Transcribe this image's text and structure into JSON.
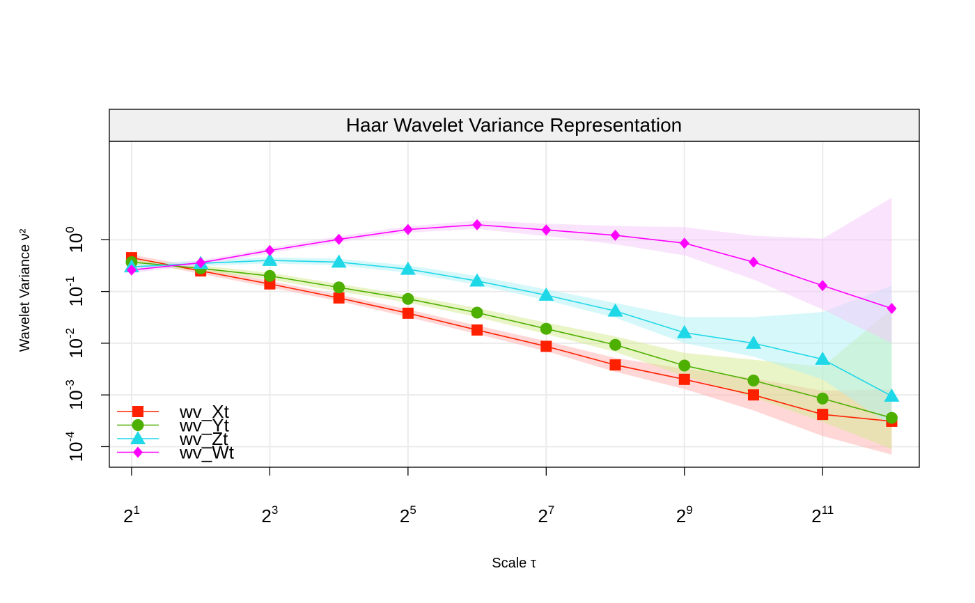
{
  "chart_data": {
    "type": "line",
    "title": "Haar Wavelet Variance Representation",
    "xlabel": "Scale τ",
    "ylabel": "Wavelet Variance ν²",
    "x_scale": "log2",
    "y_scale": "log10",
    "x": [
      2,
      4,
      8,
      16,
      32,
      64,
      128,
      256,
      512,
      1024,
      2048,
      4096
    ],
    "xlim": [
      1.6,
      5400
    ],
    "ylim": [
      4e-05,
      80
    ],
    "x_ticks": [
      {
        "value": 2,
        "base": "2",
        "exp": "1"
      },
      {
        "value": 8,
        "base": "2",
        "exp": "3"
      },
      {
        "value": 32,
        "base": "2",
        "exp": "5"
      },
      {
        "value": 128,
        "base": "2",
        "exp": "7"
      },
      {
        "value": 512,
        "base": "2",
        "exp": "9"
      },
      {
        "value": 2048,
        "base": "2",
        "exp": "11"
      }
    ],
    "y_ticks": [
      {
        "value": 1,
        "base": "10",
        "exp": "0"
      },
      {
        "value": 0.1,
        "base": "10",
        "exp": "-1"
      },
      {
        "value": 0.01,
        "base": "10",
        "exp": "-2"
      },
      {
        "value": 0.001,
        "base": "10",
        "exp": "-3"
      },
      {
        "value": 0.0001,
        "base": "10",
        "exp": "-4"
      }
    ],
    "grid": true,
    "legend": {
      "position": "bottom-left"
    },
    "series": [
      {
        "name": "wv_Xt",
        "color": "#ff2000",
        "fill": "#ffb0b0",
        "marker": "square",
        "values": [
          0.45,
          0.25,
          0.14,
          0.075,
          0.038,
          0.018,
          0.0087,
          0.0038,
          0.002,
          0.001,
          0.00042,
          0.00031
        ],
        "lower": [
          0.4,
          0.22,
          0.12,
          0.065,
          0.032,
          0.015,
          0.007,
          0.0028,
          0.0013,
          0.0005,
          0.00016,
          7e-05
        ],
        "upper": [
          0.52,
          0.29,
          0.16,
          0.087,
          0.045,
          0.022,
          0.011,
          0.0052,
          0.0032,
          0.0021,
          0.0012,
          0.0013
        ]
      },
      {
        "name": "wv_Yt",
        "color": "#4daf00",
        "fill": "#d4ea90",
        "marker": "circle",
        "values": [
          0.37,
          0.28,
          0.2,
          0.12,
          0.072,
          0.039,
          0.019,
          0.0093,
          0.0037,
          0.0019,
          0.00085,
          0.00036
        ],
        "lower": [
          0.33,
          0.25,
          0.17,
          0.1,
          0.061,
          0.032,
          0.015,
          0.0068,
          0.0023,
          0.0009,
          0.0003,
          9e-05
        ],
        "upper": [
          0.42,
          0.32,
          0.23,
          0.14,
          0.085,
          0.048,
          0.025,
          0.0135,
          0.0065,
          0.0048,
          0.0035,
          0.046
        ]
      },
      {
        "name": "wv_Zt",
        "color": "#1ed8e8",
        "fill": "#b0f2f6",
        "marker": "triangle",
        "values": [
          0.3,
          0.35,
          0.4,
          0.37,
          0.27,
          0.16,
          0.085,
          0.042,
          0.016,
          0.01,
          0.0049,
          0.00095
        ],
        "lower": [
          0.27,
          0.31,
          0.35,
          0.32,
          0.23,
          0.135,
          0.068,
          0.031,
          0.01,
          0.0055,
          0.002,
          0.00025
        ],
        "upper": [
          0.34,
          0.4,
          0.46,
          0.43,
          0.32,
          0.2,
          0.11,
          0.06,
          0.032,
          0.032,
          0.04,
          0.13
        ]
      },
      {
        "name": "wv_Wt",
        "color": "#ff00ff",
        "fill": "#f5c8fa",
        "marker": "diamond",
        "values": [
          0.26,
          0.36,
          0.62,
          1.02,
          1.58,
          1.95,
          1.55,
          1.22,
          0.86,
          0.37,
          0.13,
          0.047
        ],
        "lower": [
          0.23,
          0.32,
          0.55,
          0.9,
          1.38,
          1.62,
          1.18,
          0.82,
          0.5,
          0.17,
          0.045,
          0.01
        ],
        "upper": [
          0.29,
          0.4,
          0.7,
          1.16,
          1.82,
          2.35,
          2.05,
          1.85,
          1.75,
          1.2,
          1.05,
          6.5
        ]
      }
    ]
  }
}
